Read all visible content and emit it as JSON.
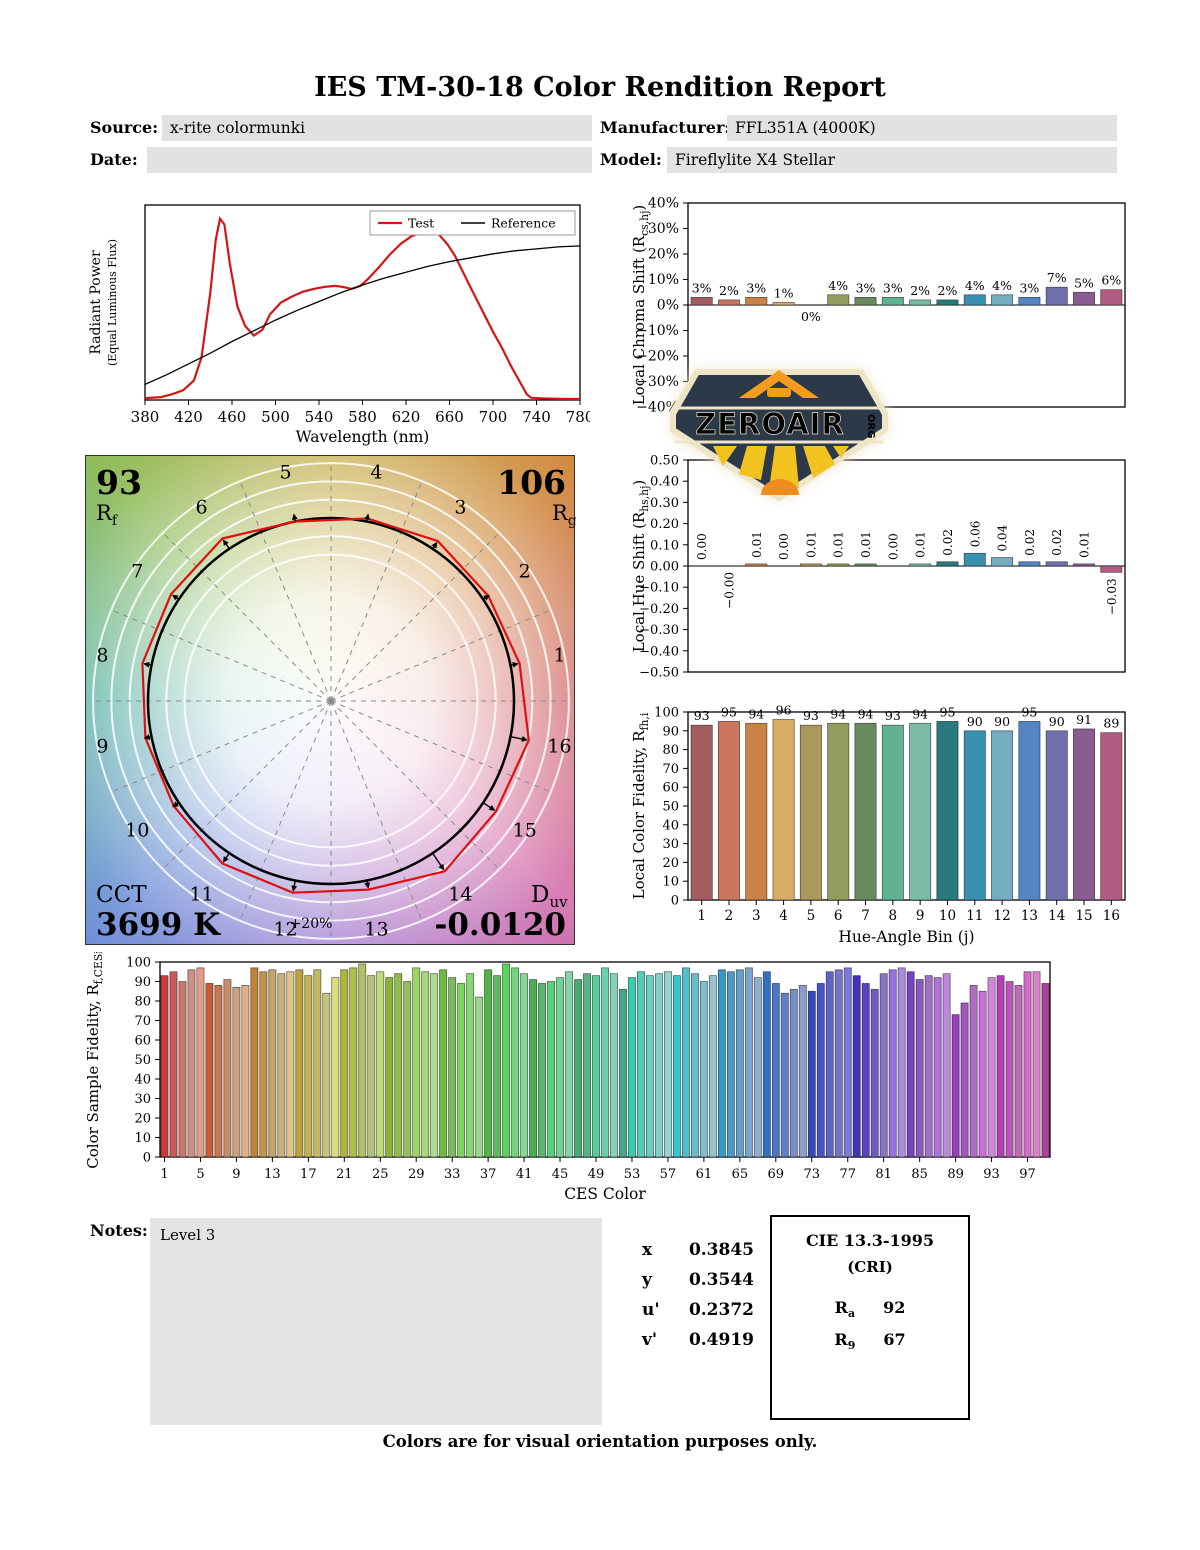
{
  "report": {
    "title": "IES TM-30-18 Color Rendition Report",
    "header": {
      "source_label": "Source:",
      "source_value": "x-rite colormunki",
      "date_label": "Date:",
      "date_value": "",
      "manufacturer_label": "Manufacturer:",
      "manufacturer_value": "FFL351A (4000K)",
      "model_label": "Model:",
      "model_value": "Fireflylite X4 Stellar"
    },
    "notes": {
      "label": "Notes:",
      "value": "Level 3"
    },
    "chromaticity": {
      "rows": [
        {
          "label": "x",
          "value": "0.3845"
        },
        {
          "label": "y",
          "value": "0.3544"
        },
        {
          "label": "u'",
          "value": "0.2372"
        },
        {
          "label": "v'",
          "value": "0.4919"
        }
      ]
    },
    "cri": {
      "title": "CIE 13.3-1995",
      "subtitle": "(CRI)",
      "ra_label": "R",
      "ra_sub": "a",
      "ra_value": "92",
      "r9_label": "R",
      "r9_sub": "9",
      "r9_value": "67"
    },
    "footer": "Colors are for visual orientation purposes only.",
    "watermark": {
      "text": "ZEROAIR",
      "org": "ORG"
    }
  },
  "bin_colors": [
    "#a35c60",
    "#cc765e",
    "#cc8145",
    "#d8ac62",
    "#ac9959",
    "#919e5d",
    "#668b5e",
    "#61b290",
    "#7bbaa6",
    "#297a7e",
    "#3a90b1",
    "#73adc2",
    "#5484c1",
    "#7070ab",
    "#8a5d92",
    "#b15b82"
  ],
  "chart_data": [
    {
      "id": "spd",
      "type": "line",
      "xlabel": "Wavelength (nm)",
      "ylabel_line1": "Radiant Power",
      "ylabel_line2": "(Equal Luminous Flux)",
      "xlim": [
        380,
        780
      ],
      "xticks": [
        380,
        420,
        460,
        500,
        540,
        580,
        620,
        660,
        700,
        740,
        780
      ],
      "legend_position": "upper right",
      "series": [
        {
          "name": "Test",
          "color": "#d51414",
          "x": [
            380,
            395,
            405,
            415,
            425,
            432,
            440,
            445,
            449,
            453,
            458,
            465,
            472,
            480,
            488,
            495,
            505,
            515,
            525,
            535,
            545,
            555,
            562,
            570,
            578,
            585,
            595,
            605,
            615,
            625,
            635,
            643,
            650,
            658,
            665,
            672,
            680,
            690,
            700,
            708,
            716,
            722,
            727,
            731,
            735,
            745,
            760,
            780
          ],
          "y": [
            0.01,
            0.015,
            0.03,
            0.05,
            0.1,
            0.22,
            0.55,
            0.82,
            0.93,
            0.9,
            0.7,
            0.48,
            0.38,
            0.33,
            0.36,
            0.44,
            0.5,
            0.53,
            0.555,
            0.57,
            0.58,
            0.585,
            0.58,
            0.57,
            0.585,
            0.62,
            0.68,
            0.745,
            0.8,
            0.84,
            0.86,
            0.865,
            0.85,
            0.8,
            0.74,
            0.66,
            0.57,
            0.46,
            0.35,
            0.27,
            0.18,
            0.12,
            0.07,
            0.03,
            0.012,
            0.008,
            0.006,
            0.005
          ]
        },
        {
          "name": "Reference",
          "color": "#000000",
          "x": [
            380,
            400,
            420,
            440,
            460,
            480,
            500,
            520,
            540,
            560,
            580,
            600,
            620,
            640,
            660,
            680,
            700,
            720,
            740,
            760,
            780
          ],
          "y": [
            0.08,
            0.13,
            0.185,
            0.24,
            0.3,
            0.355,
            0.41,
            0.46,
            0.505,
            0.55,
            0.59,
            0.625,
            0.655,
            0.685,
            0.71,
            0.73,
            0.75,
            0.765,
            0.775,
            0.785,
            0.79
          ]
        }
      ]
    },
    {
      "id": "chroma_shift",
      "type": "bar",
      "ylabel": {
        "pre": "Local Chroma Shift (R",
        "sub": "cs,hj",
        "post": ")"
      },
      "ylim": [
        -40,
        40
      ],
      "yticks": [
        "40%",
        "30%",
        "20%",
        "10%",
        "0%",
        "−10%",
        "−20%",
        "−30%",
        "−40%"
      ],
      "values": [
        3,
        2,
        3,
        1,
        0,
        4,
        3,
        3,
        2,
        2,
        4,
        4,
        3,
        7,
        5,
        6
      ],
      "bar_labels": [
        "3%",
        "2%",
        "3%",
        "1%",
        "0%",
        "4%",
        "3%",
        "3%",
        "2%",
        "2%",
        "4%",
        "4%",
        "3%",
        "7%",
        "5%",
        "6%"
      ],
      "label_below": [
        false,
        false,
        false,
        false,
        true,
        false,
        false,
        false,
        false,
        false,
        false,
        false,
        false,
        false,
        false,
        false
      ],
      "label_rotated": false
    },
    {
      "id": "hue_shift",
      "type": "bar",
      "ylabel": {
        "pre": "Local Hue Shift (R",
        "sub": "hs,hj",
        "post": ")"
      },
      "ylim": [
        -0.5,
        0.5
      ],
      "yticks": [
        "0.50",
        "0.40",
        "0.30",
        "0.20",
        "0.10",
        "0.00",
        "−0.10",
        "−0.20",
        "−0.30",
        "−0.40",
        "−0.50"
      ],
      "values": [
        0.0,
        -0.0,
        0.01,
        0.0,
        0.01,
        0.01,
        0.01,
        0.0,
        0.01,
        0.02,
        0.06,
        0.04,
        0.02,
        0.02,
        0.01,
        -0.03
      ],
      "bar_labels": [
        "0.00",
        "−0.00",
        "0.01",
        "0.00",
        "0.01",
        "0.01",
        "0.01",
        "0.00",
        "0.01",
        "0.02",
        "0.06",
        "0.04",
        "0.02",
        "0.02",
        "0.01",
        "−0.03"
      ],
      "label_below": [
        false,
        true,
        false,
        false,
        false,
        false,
        false,
        false,
        false,
        false,
        false,
        false,
        false,
        false,
        false,
        true
      ],
      "label_rotated": true
    },
    {
      "id": "local_fidelity",
      "type": "bar",
      "ylabel": {
        "pre": "Local Color Fidelity, R",
        "sub": "fh,i",
        "post": ""
      },
      "xlabel": "Hue-Angle Bin (j)",
      "ylim": [
        0,
        100
      ],
      "yticks": [
        "100",
        "90",
        "80",
        "70",
        "60",
        "50",
        "40",
        "30",
        "20",
        "10",
        "0"
      ],
      "categories": [
        "1",
        "2",
        "3",
        "4",
        "5",
        "6",
        "7",
        "8",
        "9",
        "10",
        "11",
        "12",
        "13",
        "14",
        "15",
        "16"
      ],
      "values": [
        93,
        95,
        94,
        96,
        93,
        94,
        94,
        93,
        94,
        95,
        90,
        90,
        95,
        90,
        91,
        89
      ],
      "bar_labels": [
        "93",
        "95",
        "94",
        "96",
        "93",
        "94",
        "94",
        "93",
        "94",
        "95",
        "90",
        "90",
        "95",
        "90",
        "91",
        "89"
      ],
      "label_rotated": false
    },
    {
      "id": "ces",
      "type": "bar",
      "ylabel": {
        "pre": "Color Sample Fidelity, R",
        "sub": "f,CESi",
        "post": ""
      },
      "xlabel": "CES Color",
      "ylim": [
        0,
        100
      ],
      "yticks": [
        "100",
        "90",
        "80",
        "70",
        "60",
        "50",
        "40",
        "30",
        "20",
        "10",
        "0"
      ],
      "xticks": [
        1,
        5,
        9,
        13,
        17,
        21,
        25,
        29,
        33,
        37,
        41,
        45,
        49,
        53,
        57,
        61,
        65,
        69,
        73,
        77,
        81,
        85,
        89,
        93,
        97
      ],
      "values": [
        93,
        95,
        90,
        96,
        97,
        89,
        88,
        91,
        87,
        88,
        97,
        95,
        96,
        94,
        95,
        96,
        93,
        96,
        84,
        92,
        96,
        97,
        99,
        93,
        95,
        92,
        94,
        90,
        97,
        95,
        94,
        96,
        92,
        89,
        94,
        82,
        96,
        93,
        99,
        97,
        94,
        91,
        89,
        90,
        92,
        95,
        91,
        94,
        93,
        97,
        94,
        86,
        92,
        95,
        93,
        94,
        95,
        93,
        97,
        94,
        90,
        93,
        96,
        95,
        96,
        97,
        92,
        95,
        89,
        84,
        86,
        88,
        85,
        89,
        95,
        96,
        97,
        93,
        89,
        86,
        94,
        96,
        97,
        95,
        91,
        93,
        92,
        94,
        73,
        79,
        88,
        85,
        92,
        93,
        90,
        88,
        95,
        95,
        89
      ]
    },
    {
      "id": "cvg",
      "type": "polar",
      "rf_value": "93",
      "rf_label": {
        "main": "R",
        "sub": "f"
      },
      "rg_value": "106",
      "rg_label": {
        "main": "R",
        "sub": "g"
      },
      "cct_label": "CCT",
      "cct_value": "3699 K",
      "duv_label": {
        "main": "D",
        "sub": "uv"
      },
      "duv_value": "-0.0120",
      "ring_label": "+20%",
      "bins": [
        "1",
        "2",
        "3",
        "4",
        "5",
        "6",
        "7",
        "8",
        "9",
        "10",
        "11",
        "12",
        "13",
        "14",
        "15",
        "16"
      ],
      "test_radii_pct": [
        103,
        102,
        103,
        101,
        100,
        104,
        103,
        103,
        102,
        102,
        104,
        104,
        103,
        107,
        105,
        106
      ]
    }
  ]
}
